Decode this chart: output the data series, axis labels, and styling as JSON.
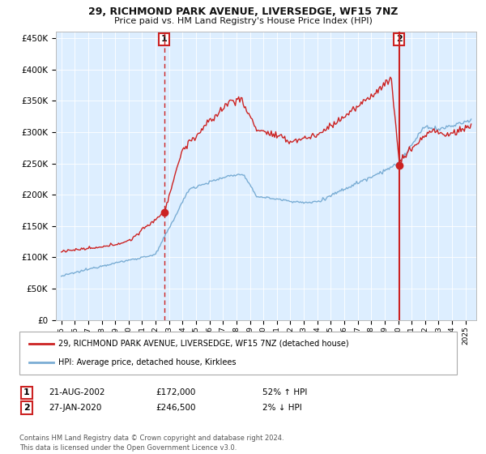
{
  "title": "29, RICHMOND PARK AVENUE, LIVERSEDGE, WF15 7NZ",
  "subtitle": "Price paid vs. HM Land Registry's House Price Index (HPI)",
  "legend_line1": "29, RICHMOND PARK AVENUE, LIVERSEDGE, WF15 7NZ (detached house)",
  "legend_line2": "HPI: Average price, detached house, Kirklees",
  "annotation1_date": "21-AUG-2002",
  "annotation1_price": "£172,000",
  "annotation1_hpi": "52% ↑ HPI",
  "annotation2_date": "27-JAN-2020",
  "annotation2_price": "£246,500",
  "annotation2_hpi": "2% ↓ HPI",
  "footer": "Contains HM Land Registry data © Crown copyright and database right 2024.\nThis data is licensed under the Open Government Licence v3.0.",
  "ylim": [
    0,
    460000
  ],
  "yticks": [
    0,
    50000,
    100000,
    150000,
    200000,
    250000,
    300000,
    350000,
    400000,
    450000
  ],
  "red_line_color": "#cc2222",
  "blue_line_color": "#7aadd4",
  "bg_color": "#ddeeff",
  "vline_color": "#cc2222",
  "sale1_x": 2002.64,
  "sale1_y": 172000,
  "sale2_x": 2020.07,
  "sale2_y": 246500,
  "xmin": 1994.6,
  "xmax": 2025.8
}
